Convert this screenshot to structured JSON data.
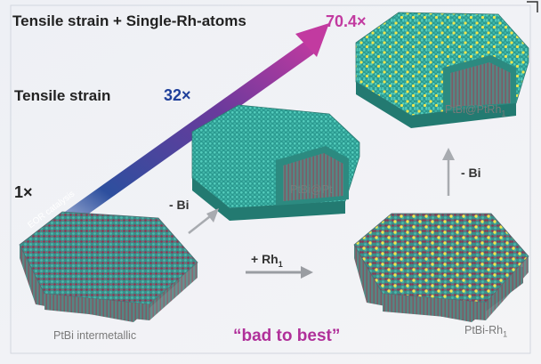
{
  "headings": {
    "row1": "Tensile strain  +  Single-Rh-atoms",
    "row2": "Tensile strain"
  },
  "multipliers": {
    "best": "70.4×",
    "strain": "32×",
    "base": "1×"
  },
  "arrow_caption": "EOR catalysis",
  "steps": {
    "remove_bi_1": "- Bi",
    "remove_bi_2": "- Bi",
    "add_rh_main": "+ Rh",
    "add_rh_sub": "1"
  },
  "materials": {
    "start": "PtBi intermetallic",
    "core_shell": "PtBi@Pt",
    "rh_doped_main": "PtBi-Rh",
    "rh_doped_sub": "1",
    "final_main": "PtBi@PtRh",
    "final_sub": "1"
  },
  "slogan": "“bad to best”",
  "colors": {
    "background": "#eef1f5",
    "multiplier_best": "#c23aa0",
    "multiplier_strain": "#1f3f9a",
    "arrow_start": "#1f4fa8",
    "arrow_end": "#c23aa0",
    "slogan": "#b0309a",
    "pt_atoms": "#3ab8a8",
    "bi_atoms": "#9a3552",
    "rh_atoms": "#e8e04a"
  }
}
